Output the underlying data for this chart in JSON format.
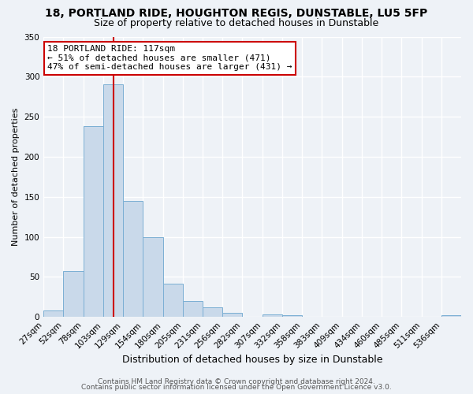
{
  "title1": "18, PORTLAND RIDE, HOUGHTON REGIS, DUNSTABLE, LU5 5FP",
  "title2": "Size of property relative to detached houses in Dunstable",
  "xlabel": "Distribution of detached houses by size in Dunstable",
  "ylabel": "Number of detached properties",
  "bar_labels": [
    "27sqm",
    "52sqm",
    "78sqm",
    "103sqm",
    "129sqm",
    "154sqm",
    "180sqm",
    "205sqm",
    "231sqm",
    "256sqm",
    "282sqm",
    "307sqm",
    "332sqm",
    "358sqm",
    "383sqm",
    "409sqm",
    "434sqm",
    "460sqm",
    "485sqm",
    "511sqm",
    "536sqm"
  ],
  "bar_values": [
    8,
    57,
    238,
    290,
    145,
    100,
    42,
    20,
    12,
    5,
    0,
    3,
    2,
    0,
    0,
    0,
    0,
    0,
    0,
    0,
    2
  ],
  "bar_color": "#c9d9ea",
  "bar_edgecolor": "#7bafd4",
  "vline_x": 117,
  "bin_width": 25,
  "annotation_text": "18 PORTLAND RIDE: 117sqm\n← 51% of detached houses are smaller (471)\n47% of semi-detached houses are larger (431) →",
  "annotation_box_edgecolor": "#cc0000",
  "annotation_box_facecolor": "#ffffff",
  "vline_color": "#cc0000",
  "ylim": [
    0,
    350
  ],
  "yticks": [
    0,
    50,
    100,
    150,
    200,
    250,
    300,
    350
  ],
  "footer1": "Contains HM Land Registry data © Crown copyright and database right 2024.",
  "footer2": "Contains public sector information licensed under the Open Government Licence v3.0.",
  "background_color": "#eef2f7",
  "grid_color": "#ffffff",
  "title1_fontsize": 10,
  "title2_fontsize": 9,
  "xlabel_fontsize": 9,
  "ylabel_fontsize": 8,
  "tick_fontsize": 7.5,
  "footer_fontsize": 6.5,
  "annotation_fontsize": 8
}
